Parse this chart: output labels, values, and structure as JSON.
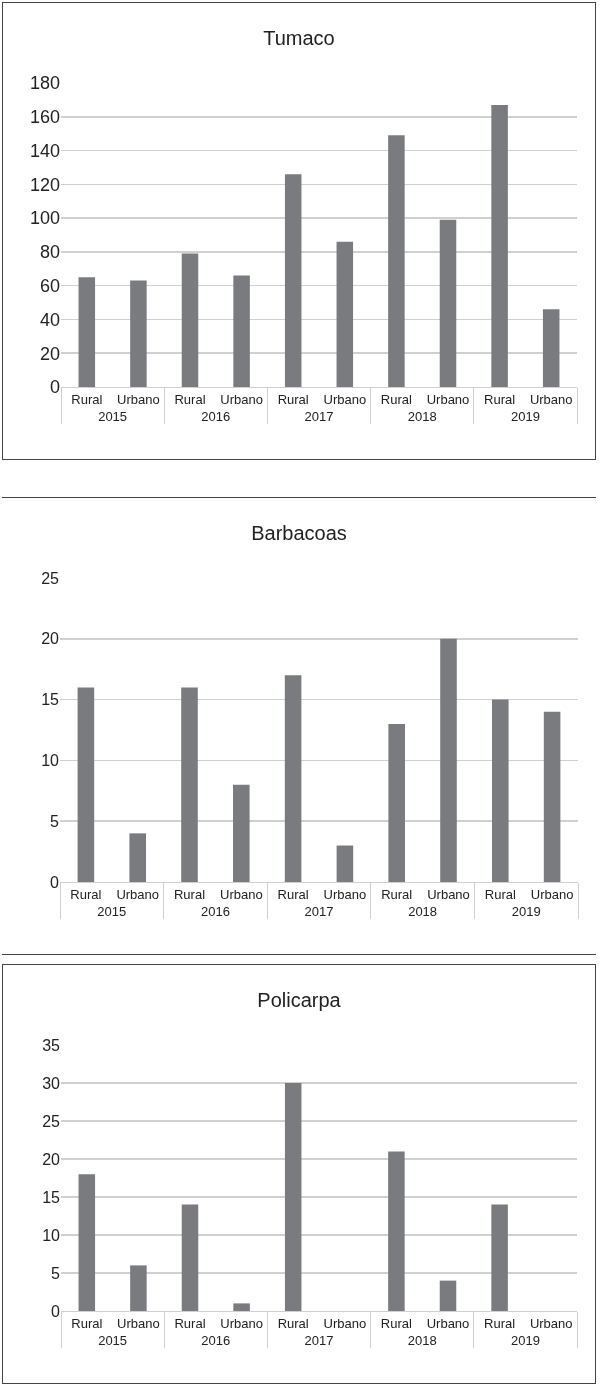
{
  "chart_data": [
    {
      "type": "bar",
      "title": "Tumaco",
      "categories": [
        "Rural",
        "Urbano",
        "Rural",
        "Urbano",
        "Rural",
        "Urbano",
        "Rural",
        "Urbano",
        "Rural",
        "Urbano"
      ],
      "annotations": [
        "2015",
        "2016",
        "2017",
        "2018",
        "2019"
      ],
      "values": [
        65,
        63,
        79,
        66,
        126,
        86,
        149,
        99,
        167,
        46
      ],
      "color": "#7a7b7f",
      "ylim": [
        0,
        180
      ],
      "yticks": [
        0,
        20,
        40,
        60,
        80,
        100,
        120,
        140,
        160,
        180
      ],
      "grid": "y"
    },
    {
      "type": "bar",
      "title": "Barbacoas",
      "categories": [
        "Rural",
        "Urbano",
        "Rural",
        "Urbano",
        "Rural",
        "Urbano",
        "Rural",
        "Urbano",
        "Rural",
        "Urbano"
      ],
      "annotations": [
        "2015",
        "2016",
        "2017",
        "2018",
        "2019"
      ],
      "values": [
        16,
        4,
        16,
        8,
        17,
        3,
        13,
        20,
        15,
        14
      ],
      "color": "#7a7b7f",
      "ylim": [
        0,
        25
      ],
      "yticks": [
        0,
        5,
        10,
        15,
        20,
        25
      ],
      "grid": "y"
    },
    {
      "type": "bar",
      "title": "Policarpa",
      "categories": [
        "Rural",
        "Urbano",
        "Rural",
        "Urbano",
        "Rural",
        "Urbano",
        "Rural",
        "Urbano",
        "Rural",
        "Urbano"
      ],
      "annotations": [
        "2015",
        "2016",
        "2017",
        "2018",
        "2019"
      ],
      "values": [
        18,
        6,
        14,
        1,
        30,
        0,
        21,
        4,
        14,
        0
      ],
      "color": "#7a7b7f",
      "ylim": [
        0,
        35
      ],
      "yticks": [
        0,
        5,
        10,
        15,
        20,
        25,
        30,
        35
      ],
      "grid": "y"
    }
  ]
}
